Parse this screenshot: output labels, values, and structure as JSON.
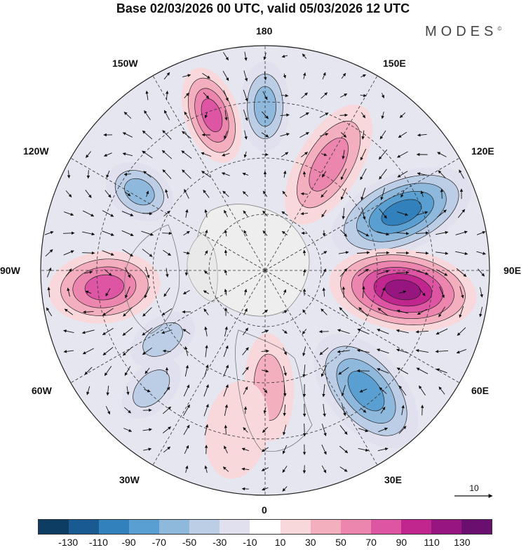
{
  "title": "Base 02/03/2026 00 UTC, valid 05/03/2026 12 UTC",
  "brand": "MODES",
  "brand_mark": "©",
  "longitudes": {
    "n180": "180",
    "e150": "150E",
    "e120": "120E",
    "e90": "90E",
    "e60": "60E",
    "e30": "30E",
    "zero": "0",
    "w30": "30W",
    "w60": "60W",
    "w90": "90W",
    "w120": "120W",
    "w150": "150W"
  },
  "scale_vector": "10",
  "colorbar": {
    "colors": [
      "#0d3d62",
      "#1a5a92",
      "#3281bd",
      "#5a9fd1",
      "#8fb8dd",
      "#bccde6",
      "#e0e0ee",
      "#ffffff",
      "#f9d8dc",
      "#f3afbd",
      "#ec86ae",
      "#dd55a3",
      "#c1268f",
      "#96157f",
      "#6a0f70"
    ],
    "ticks": [
      "-130",
      "-110",
      "-90",
      "-70",
      "-50",
      "-30",
      "-10",
      "10",
      "30",
      "50",
      "70",
      "90",
      "110",
      "130"
    ]
  },
  "anomalies": [
    {
      "name": "blue-150e-east",
      "angle": 113,
      "r": 0.66,
      "rx": 0.33,
      "ry": 0.17,
      "strength": -5
    },
    {
      "name": "purple-90e",
      "angle": 82,
      "r": 0.62,
      "rx": 0.33,
      "ry": 0.18,
      "strength": 6
    },
    {
      "name": "blue-50e",
      "angle": 40,
      "r": 0.7,
      "rx": 0.3,
      "ry": 0.17,
      "strength": -4
    },
    {
      "name": "pink-150e",
      "angle": 149,
      "r": 0.55,
      "rx": 0.3,
      "ry": 0.14,
      "strength": 3
    },
    {
      "name": "blue-180",
      "angle": 180,
      "r": 0.73,
      "rx": 0.2,
      "ry": 0.11,
      "strength": -3
    },
    {
      "name": "pink-160w",
      "angle": 199,
      "r": 0.73,
      "rx": 0.22,
      "ry": 0.12,
      "strength": 4
    },
    {
      "name": "blue-125w",
      "angle": 238,
      "r": 0.66,
      "rx": 0.16,
      "ry": 0.12,
      "strength": -3
    },
    {
      "name": "pink-90w",
      "angle": 276,
      "r": 0.72,
      "rx": 0.25,
      "ry": 0.16,
      "strength": 4
    },
    {
      "name": "blue-60w",
      "angle": 304,
      "r": 0.55,
      "rx": 0.16,
      "ry": 0.1,
      "strength": -2
    },
    {
      "name": "blue-45w",
      "angle": 316,
      "r": 0.73,
      "rx": 0.16,
      "ry": 0.1,
      "strength": -2
    },
    {
      "name": "pink-10e",
      "angle": 2,
      "r": 0.52,
      "rx": 0.24,
      "ry": 0.11,
      "strength": 2
    },
    {
      "name": "pink-0",
      "angle": 350,
      "r": 0.72,
      "rx": 0.22,
      "ry": 0.14,
      "strength": 1
    }
  ]
}
